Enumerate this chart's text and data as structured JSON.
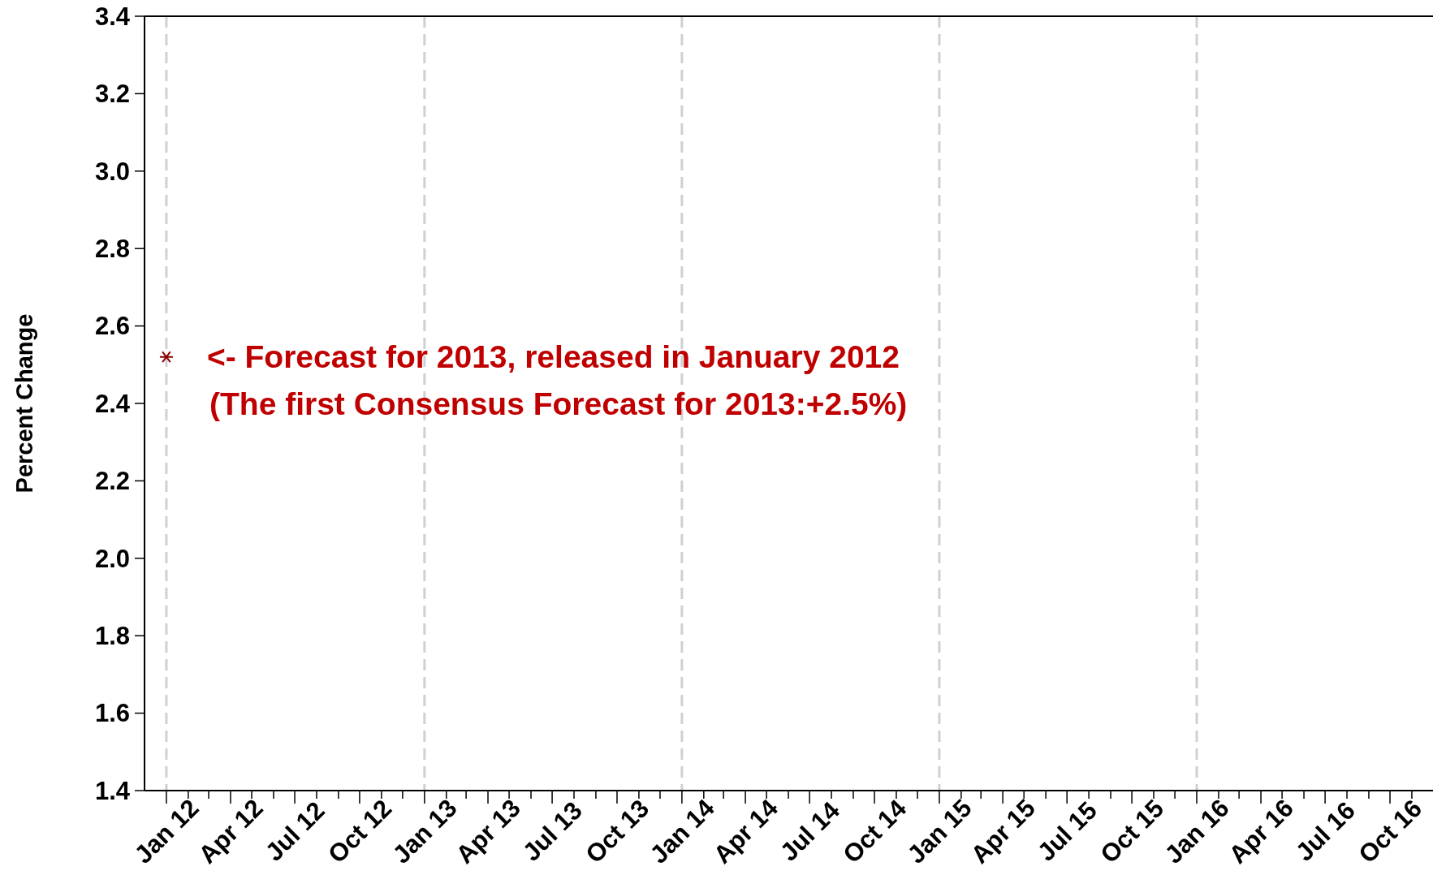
{
  "chart_data": {
    "type": "scatter",
    "ylabel": "Percent Change",
    "x": [
      "2012-01-01"
    ],
    "series": [
      {
        "color": "#8b0000",
        "values": [
          2.52
        ],
        "marker": "cross"
      }
    ],
    "xlim": [
      "2011-12-01",
      "2016-12-01"
    ],
    "ylim": [
      1.4,
      3.4
    ],
    "yticks": [
      1.4,
      1.6,
      1.8,
      {
        "value": 2,
        "label": "2.0"
      },
      2.2,
      2.4,
      2.6,
      2.8,
      {
        "value": 3,
        "label": "3.0"
      },
      3.2,
      3.4
    ],
    "xticks": [
      {
        "value": "2012-01-01",
        "label": "Jan 12"
      },
      {
        "value": "2012-02-01",
        "label": null
      },
      {
        "value": "2012-03-01",
        "label": null
      },
      {
        "value": "2012-04-01",
        "label": "Apr 12"
      },
      {
        "value": "2012-05-01",
        "label": null
      },
      {
        "value": "2012-06-01",
        "label": null
      },
      {
        "value": "2012-07-01",
        "label": "Jul 12"
      },
      {
        "value": "2012-08-01",
        "label": null
      },
      {
        "value": "2012-09-01",
        "label": null
      },
      {
        "value": "2012-10-01",
        "label": "Oct 12"
      },
      {
        "value": "2012-11-01",
        "label": null
      },
      {
        "value": "2012-12-01",
        "label": null
      },
      {
        "value": "2013-01-01",
        "label": "Jan 13"
      },
      {
        "value": "2013-02-01",
        "label": null
      },
      {
        "value": "2013-03-01",
        "label": null
      },
      {
        "value": "2013-04-01",
        "label": "Apr 13"
      },
      {
        "value": "2013-05-01",
        "label": null
      },
      {
        "value": "2013-06-01",
        "label": null
      },
      {
        "value": "2013-07-01",
        "label": "Jul 13"
      },
      {
        "value": "2013-08-01",
        "label": null
      },
      {
        "value": "2013-09-01",
        "label": null
      },
      {
        "value": "2013-10-01",
        "label": "Oct 13"
      },
      {
        "value": "2013-11-01",
        "label": null
      },
      {
        "value": "2013-12-01",
        "label": null
      },
      {
        "value": "2014-01-01",
        "label": "Jan 14"
      },
      {
        "value": "2014-02-01",
        "label": null
      },
      {
        "value": "2014-03-01",
        "label": null
      },
      {
        "value": "2014-04-01",
        "label": "Apr 14"
      },
      {
        "value": "2014-05-01",
        "label": null
      },
      {
        "value": "2014-06-01",
        "label": null
      },
      {
        "value": "2014-07-01",
        "label": "Jul 14"
      },
      {
        "value": "2014-08-01",
        "label": null
      },
      {
        "value": "2014-09-01",
        "label": null
      },
      {
        "value": "2014-10-01",
        "label": "Oct 14"
      },
      {
        "value": "2014-11-01",
        "label": null
      },
      {
        "value": "2014-12-01",
        "label": null
      },
      {
        "value": "2015-01-01",
        "label": "Jan 15"
      },
      {
        "value": "2015-02-01",
        "label": null
      },
      {
        "value": "2015-03-01",
        "label": null
      },
      {
        "value": "2015-04-01",
        "label": "Apr 15"
      },
      {
        "value": "2015-05-01",
        "label": null
      },
      {
        "value": "2015-06-01",
        "label": null
      },
      {
        "value": "2015-07-01",
        "label": "Jul 15"
      },
      {
        "value": "2015-08-01",
        "label": null
      },
      {
        "value": "2015-09-01",
        "label": null
      },
      {
        "value": "2015-10-01",
        "label": "Oct 15"
      },
      {
        "value": "2015-11-01",
        "label": null
      },
      {
        "value": "2015-12-01",
        "label": null
      },
      {
        "value": "2016-01-01",
        "label": "Jan 16"
      },
      {
        "value": "2016-02-01",
        "label": null
      },
      {
        "value": "2016-03-01",
        "label": null
      },
      {
        "value": "2016-04-01",
        "label": "Apr 16"
      },
      {
        "value": "2016-05-01",
        "label": null
      },
      {
        "value": "2016-06-01",
        "label": null
      },
      {
        "value": "2016-07-01",
        "label": "Jul 16"
      },
      {
        "value": "2016-08-01",
        "label": null
      },
      {
        "value": "2016-09-01",
        "label": null
      },
      {
        "value": "2016-10-01",
        "label": "Oct 16"
      },
      {
        "value": "2016-11-01",
        "label": null
      }
    ],
    "ref_lines": [
      {
        "axis": "x",
        "value": "2012-01-01",
        "color": "#d0d0d0",
        "line_style": "dashed"
      },
      {
        "axis": "x",
        "value": "2013-01-01",
        "color": "#d0d0d0",
        "line_style": "dashed"
      },
      {
        "axis": "x",
        "value": "2014-01-01",
        "color": "#d0d0d0",
        "line_style": "dashed"
      },
      {
        "axis": "x",
        "value": "2015-01-01",
        "color": "#d0d0d0",
        "line_style": "dashed"
      },
      {
        "axis": "x",
        "value": "2016-01-01",
        "color": "#d0d0d0",
        "line_style": "dashed"
      }
    ],
    "annotations": [
      {
        "text": "<- Forecast for 2013, released in January 2012",
        "x": "2012-01-01",
        "y": 2.52
      },
      "(The first Consensus Forecast for 2013:+2.5%)"
    ],
    "grid": false
  }
}
